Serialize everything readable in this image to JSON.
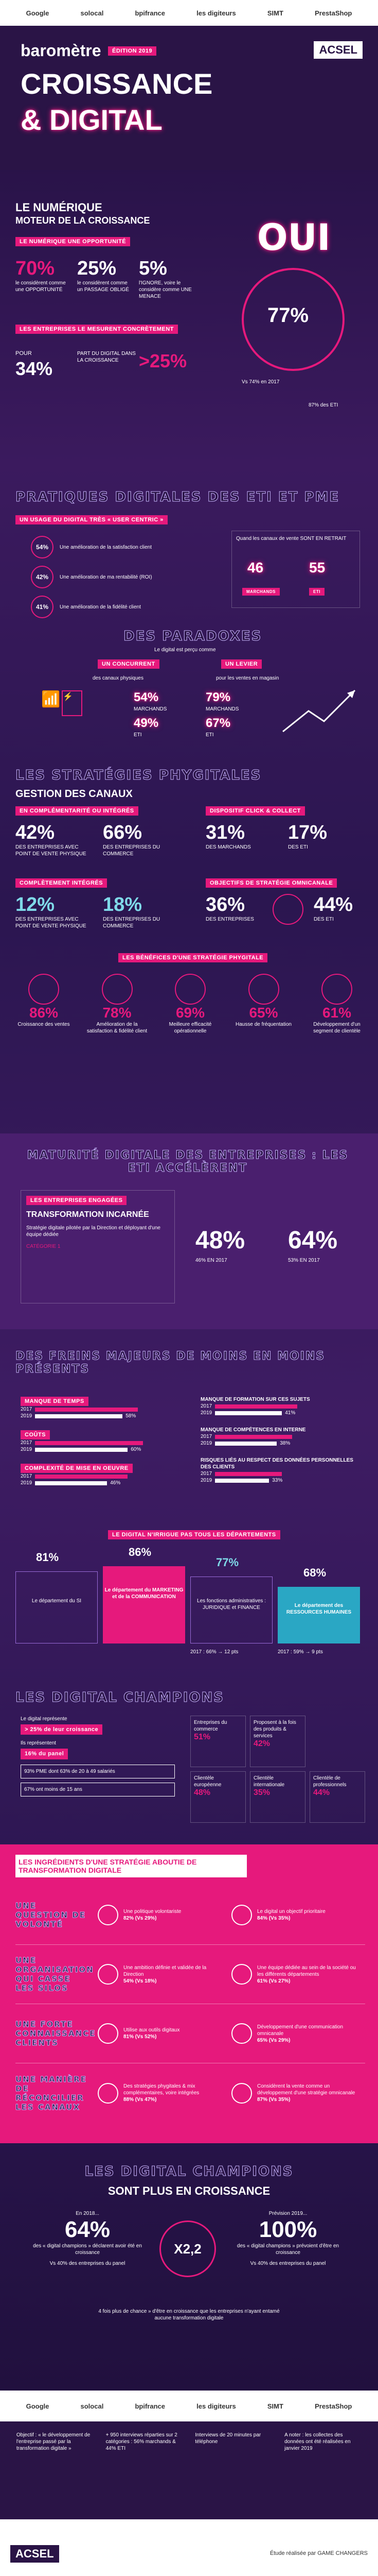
{
  "header": {
    "logos": [
      "Google",
      "solocal",
      "bpifrance",
      "les digiteurs",
      "SIMT",
      "PrestaShop"
    ],
    "title_1": "baromètre",
    "edition": "ÉDITION 2019",
    "title_2": "CROISSANCE",
    "title_3": "& DIGITAL",
    "brand": "ACSEL"
  },
  "s1": {
    "title_a": "LE NUMÉRIQUE",
    "title_b": "MOTEUR DE LA CROISSANCE",
    "tag": "LE NUMÉRIQUE UNE OPPORTUNITÉ",
    "stats": [
      {
        "value": "70%",
        "label": "le considèrent comme une OPPORTUNITÉ"
      },
      {
        "value": "25%",
        "label": "le considèrent comme un PASSAGE OBLIGÉ"
      },
      {
        "value": "5%",
        "label": "l'IGNORE, voire le considère comme UNE MENACE"
      }
    ],
    "tag2": "LES ENTREPRISES LE MESURENT CONCRÈTEMENT",
    "pour": "POUR",
    "pct34": "34%",
    "part_label": "PART DU DIGITAL DANS LA CROISSANCE",
    "gt25": ">25%",
    "oui": "OUI",
    "pct77": "77%",
    "vs": "Vs 74% en 2017",
    "eti": "87% des ETI"
  },
  "s2": {
    "title": "PRATIQUES DIGITALES DES ETI ET PME",
    "tag": "UN USAGE DU DIGITAL TRÈS « USER CENTRIC »",
    "items": [
      {
        "value": "54%",
        "label": "Une amélioration de la satisfaction client"
      },
      {
        "value": "42%",
        "label": "Une amélioration de ma rentabilité (ROI)"
      },
      {
        "value": "41%",
        "label": "Une amélioration de la fidélité client"
      }
    ],
    "retreat": "Quand les canaux de vente SONT EN RETRAIT",
    "ret_a": "46",
    "ret_b": "55",
    "ret_a_l": "MARCHANDS",
    "ret_b_l": "ETI",
    "paradox_title": "DES PARADOXES",
    "paradox_sub": "Le digital est perçu comme",
    "par_a": "UN CONCURRENT",
    "par_a2": "des canaux physiques",
    "par_b": "UN LEVIER",
    "par_b2": "pour les ventes en magasin",
    "pa1": "54%",
    "pa1l": "MARCHANDS",
    "pa2": "49%",
    "pa2l": "ETI",
    "pb1": "79%",
    "pb1l": "MARCHANDS",
    "pb2": "67%",
    "pb2l": "ETI"
  },
  "s3": {
    "title": "LES STRATÉGIES PHYGITALES",
    "sub": "GESTION DES CANAUX",
    "tag_a": "EN COMPLÉMENTARITÉ OU INTÉGRÉS",
    "tag_b": "DISPOSITIF CLICK & COLLECT",
    "a1": "42%",
    "a1l": "DES ENTREPRISES AVEC POINT DE VENTE PHYSIQUE",
    "a2": "66%",
    "a2l": "DES ENTREPRISES DU COMMERCE",
    "b1": "31%",
    "b1l": "DES MARCHANDS",
    "b2": "17%",
    "b2l": "DES ETI",
    "tag_c": "COMPLÈTEMENT INTÉGRÉS",
    "tag_d": "OBJECTIFS DE STRATÉGIE OMNICANALE",
    "c1": "12%",
    "c1l": "DES ENTREPRISES AVEC POINT DE VENTE PHYSIQUE",
    "c2": "18%",
    "c2l": "DES ENTREPRISES DU COMMERCE",
    "d1": "36%",
    "d1l": "DES ENTREPRISES",
    "d2": "44%",
    "d2l": "DES ETI",
    "tag_e": "LES BÉNÉFICES D'UNE STRATÉGIE PHYGITALE",
    "benefits": [
      {
        "value": "86%",
        "label": "Croissance des ventes"
      },
      {
        "value": "78%",
        "label": "Amélioration de la satisfaction & fidélité client"
      },
      {
        "value": "69%",
        "label": "Meilleure efficacité opérationnelle"
      },
      {
        "value": "65%",
        "label": "Hausse de fréquentation"
      },
      {
        "value": "61%",
        "label": "Développement d'un segment de clientèle"
      }
    ]
  },
  "s4": {
    "title": "MATURITÉ DIGITALE DES ENTREPRISES : LES ETI ACCÉLÈRENT",
    "tag": "LES ENTREPRISES ENGAGÉES",
    "sub": "TRANSFORMATION INCARNÉE",
    "text": "Stratégie digitale pilotée par la Direction et déployant d'une équipe dédiée",
    "cat": "CATÉGORIE 1",
    "v1": "48%",
    "v1l": "46% EN 2017",
    "v2": "64%",
    "v2l": "53% EN 2017"
  },
  "s5": {
    "title": "DES FREINS MAJEURS DE MOINS EN MOINS PRÉSENTS",
    "left": [
      {
        "label": "MANQUE DE TEMPS",
        "y2017": "2017",
        "y2019": "2019",
        "v2019": "58%"
      },
      {
        "label": "COÛTS",
        "y2017": "2017",
        "y2019": "2019",
        "v2019": "60%"
      },
      {
        "label": "COMPLEXITÉ DE MISE EN OEUVRE",
        "y2017": "2017",
        "y2019": "2019",
        "v2019": "46%"
      }
    ],
    "right": [
      {
        "label": "MANQUE DE FORMATION SUR CES SUJETS",
        "y2017": "2017",
        "y2019": "2019",
        "v2019": "41%"
      },
      {
        "label": "MANQUE DE COMPÉTENCES EN INTERNE",
        "y2017": "2017",
        "y2019": "2019",
        "v2019": "38%"
      },
      {
        "label": "RISQUES LIÉS AU RESPECT DES DONNÉES PERSONNELLES DES CLIENTS",
        "y2017": "2017",
        "y2019": "2019",
        "v2019": "33%"
      }
    ],
    "tag": "LE DIGITAL N'IRRIGUE PAS TOUS LES DÉPARTEMENTS",
    "deps": [
      {
        "value": "81%",
        "label": "Le département du SI"
      },
      {
        "value": "86%",
        "label": "Le département du MARKETING et de la COMMUNICATION"
      },
      {
        "value": "77%",
        "label": "Les fonctions administratives : JURIDIQUE et FINANCE"
      },
      {
        "value": "68%",
        "label": "Le département des RESSOURCES HUMAINES"
      }
    ],
    "note_a": "2017 : 66% → 12 pts",
    "note_b": "2017 : 59% → 9 pts"
  },
  "s6": {
    "title": "LES DIGITAL CHAMPIONS",
    "l1": "Le digital représente",
    "l1b": "> 25% de leur croissance",
    "l2": "Ils représentent",
    "l2b": "16% du panel",
    "l3": "93% PME dont 63% de 20 à 49 salariés",
    "l4": "67% ont moins de 15 ans",
    "cells": [
      {
        "label": "Entreprises du commerce",
        "value": "51%"
      },
      {
        "label": "Proposent à la fois des produits & services",
        "value": "42%"
      },
      {
        "label": "Clientèle européenne",
        "value": "48%"
      },
      {
        "label": "Clientèle internationale",
        "value": "35%"
      },
      {
        "label": "Clientèle de professionnels",
        "value": "44%"
      }
    ]
  },
  "s7": {
    "tag": "LES INGRÉDIENTS D'UNE STRATÉGIE ABOUTIE DE TRANSFORMATION DIGITALE",
    "rows": [
      {
        "head": "UNE QUESTION DE VOLONTÉ",
        "a": "Une politique volontariste",
        "av": "82% (Vs 29%)",
        "b": "Le digital un objectif prioritaire",
        "bv": "84% (Vs 35%)"
      },
      {
        "head": "UNE ORGANISATION QUI CASSE LES SILOS",
        "a": "Une ambition définie et validée de la Direction",
        "av": "54% (Vs 18%)",
        "b": "Une équipe dédiée au sein de la société ou les différents départements",
        "bv": "61% (Vs 27%)"
      },
      {
        "head": "UNE FORTE CONNAISSANCE CLIENTS",
        "a": "Utilise aux outils digitaux",
        "av": "81% (Vs 52%)",
        "b": "Développement d'une communication omnicanale",
        "bv": "65% (Vs 29%)"
      },
      {
        "head": "UNE MANIÈRE DE RÉCONCILIER LES CANAUX",
        "a": "Des stratégies phygitales & mix complémentaires, voire intégrées",
        "av": "88% (Vs 47%)",
        "b": "Considèrent la vente comme un développement d'une stratégie omnicanale",
        "bv": "87% (Vs 35%)"
      }
    ]
  },
  "s8": {
    "title": "LES DIGITAL CHAMPIONS",
    "sub": "SONT PLUS EN CROISSANCE",
    "l_head": "En 2018...",
    "l_val": "64%",
    "l_text": "des « digital champions » déclarent avoir été en croissance",
    "l_note": "Vs 40% des entreprises du panel",
    "mult": "X2,2",
    "r_head": "Prévision 2019...",
    "r_val": "100%",
    "r_text": "des « digital champions » prévoient d'être en croissance",
    "r_note": "Vs 40% des entreprises du panel",
    "quote": "4 fois plus de chance » d'être en croissance que les entreprises n'ayant entamé aucune transformation digitale"
  },
  "footer": {
    "logos": [
      "Google",
      "solocal",
      "bpifrance",
      "les digiteurs",
      "SIMT",
      "PrestaShop"
    ],
    "facts": [
      "Objectif : « le développement de l'entreprise passé par la transformation digitale »",
      "+ 950 interviews réparties sur 2 catégories : 56% marchands & 44% ETI",
      "Interviews de 20 minutes par téléphone",
      "A noter : les collectes des données ont été réalisées en janvier 2019"
    ],
    "brand": "ACSEL",
    "credit": "Étude réalisée par GAME CHANGERS"
  }
}
